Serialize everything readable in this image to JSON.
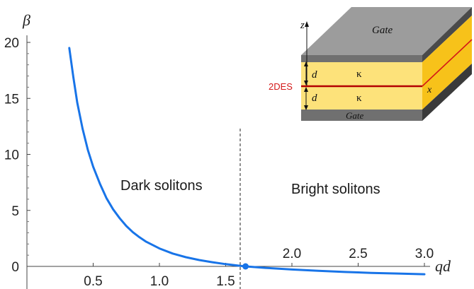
{
  "chart_data": {
    "type": "line",
    "xlabel": "qd",
    "ylabel": "β",
    "xlim": [
      0,
      3.1
    ],
    "ylim": [
      -1.2,
      21
    ],
    "x_ticks": [
      0.5,
      1.0,
      1.5,
      2.0,
      2.5,
      3.0
    ],
    "x_tick_labels": [
      "0.5",
      "1.0",
      "1.5",
      "2.0",
      "2.5",
      "3.0"
    ],
    "y_ticks": [
      0,
      5,
      10,
      15,
      20
    ],
    "y_tick_labels": [
      "0",
      "5",
      "10",
      "15",
      "20"
    ],
    "grid": false,
    "series": [
      {
        "color": "#1874e8",
        "x": [
          0.32,
          0.35,
          0.38,
          0.42,
          0.46,
          0.5,
          0.55,
          0.6,
          0.65,
          0.7,
          0.75,
          0.8,
          0.85,
          0.9,
          1.0,
          1.1,
          1.2,
          1.3,
          1.4,
          1.5,
          1.6,
          1.65,
          1.8,
          2.0,
          2.2,
          2.4,
          2.6,
          2.8,
          3.0
        ],
        "y": [
          19.5,
          16.9,
          14.6,
          12.3,
          10.4,
          8.9,
          7.4,
          6.1,
          5.1,
          4.3,
          3.6,
          3.05,
          2.6,
          2.2,
          1.6,
          1.15,
          0.82,
          0.57,
          0.37,
          0.2,
          0.06,
          0.0,
          -0.13,
          -0.28,
          -0.4,
          -0.5,
          -0.58,
          -0.64,
          -0.7
        ]
      }
    ],
    "critical_point": {
      "x": 1.65,
      "y": 0
    },
    "annotations": {
      "dark": "Dark solitons",
      "bright": "Bright solitons"
    }
  },
  "inset": {
    "gate_top": "Gate",
    "gate_bottom": "Gate",
    "label_2des": "2DES",
    "label_d_top": "d",
    "label_d_bottom": "d",
    "kappa_top": "κ",
    "kappa_bottom": "κ",
    "axis_z": "z",
    "axis_x": "x",
    "colors": {
      "gate": "#9a9a9a",
      "gate_dark": "#5a5a5a",
      "dielectric": "#fde27a",
      "dielectric_side": "#f7c21a",
      "layer_2des": "#b40000",
      "label_red": "#d41818"
    }
  }
}
